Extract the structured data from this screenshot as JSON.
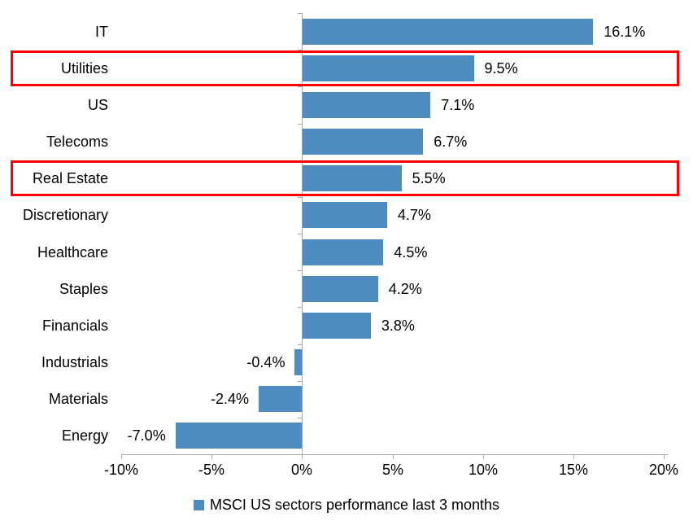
{
  "chart_data": {
    "type": "bar",
    "orientation": "horizontal",
    "categories": [
      "IT",
      "Utilities",
      "US",
      "Telecoms",
      "Real Estate",
      "Discretionary",
      "Healthcare",
      "Staples",
      "Financials",
      "Industrials",
      "Materials",
      "Energy"
    ],
    "values": [
      16.1,
      9.5,
      7.1,
      6.7,
      5.5,
      4.7,
      4.5,
      4.2,
      3.8,
      -0.4,
      -2.4,
      -7.0
    ],
    "value_labels": [
      "16.1%",
      "9.5%",
      "7.1%",
      "6.7%",
      "5.5%",
      "4.7%",
      "4.5%",
      "4.2%",
      "3.8%",
      "-0.4%",
      "-2.4%",
      "-7.0%"
    ],
    "xlim": [
      -10,
      20
    ],
    "x_tick_values": [
      -10,
      -5,
      0,
      5,
      10,
      15,
      20
    ],
    "x_tick_labels": [
      "-10%",
      "-5%",
      "0%",
      "5%",
      "10%",
      "15%",
      "20%"
    ],
    "legend": "MSCI US sectors performance last 3 months",
    "legend_position": "bottom",
    "grid": false,
    "highlighted_categories": [
      "Utilities",
      "Real Estate"
    ],
    "colors": {
      "bar": "#4E8BBE",
      "highlight_border": "#FF0000",
      "axis": "#A6A6A6",
      "text": "#000000"
    }
  }
}
